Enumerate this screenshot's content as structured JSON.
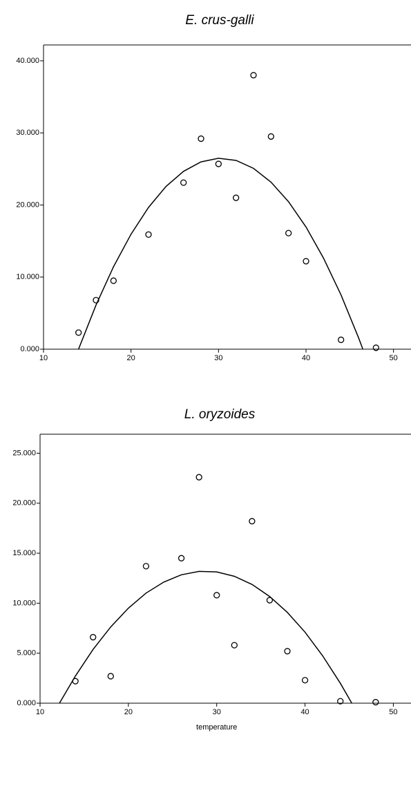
{
  "chart_data": [
    {
      "type": "scatter",
      "title": "E. crus-galli",
      "x": [
        14,
        16,
        18,
        22,
        26,
        28,
        30,
        32,
        34,
        36,
        38,
        40,
        44,
        48
      ],
      "values": [
        2.3,
        6.8,
        9.5,
        15.9,
        23.1,
        29.2,
        25.7,
        21.0,
        38.0,
        29.5,
        16.1,
        12.2,
        1.3,
        0.2
      ],
      "curve": {
        "x": [
          14,
          16,
          18,
          20,
          22,
          24,
          26,
          28,
          30,
          32,
          34,
          36,
          38,
          40,
          42,
          44,
          46,
          46.5
        ],
        "values": [
          0,
          6.12,
          11.43,
          15.95,
          19.66,
          22.57,
          24.67,
          25.98,
          26.48,
          26.18,
          25.08,
          23.17,
          20.46,
          16.95,
          12.64,
          7.52,
          1.6,
          0
        ]
      },
      "xlim": [
        10,
        52
      ],
      "ylim": [
        0,
        42.2
      ],
      "xticks": [
        10,
        20,
        30,
        40,
        50
      ],
      "yticks": [
        {
          "value": 0,
          "label": "0.000"
        },
        {
          "value": 10,
          "label": "10.000"
        },
        {
          "value": 20,
          "label": "20.000"
        },
        {
          "value": 30,
          "label": "30.000"
        },
        {
          "value": 40,
          "label": "40.000"
        }
      ],
      "color": "#000000"
    },
    {
      "type": "scatter",
      "title": "L. oryzoides",
      "x_label": "temperature",
      "x": [
        14,
        16,
        18,
        22,
        26,
        28,
        30,
        32,
        34,
        36,
        38,
        40,
        44,
        48
      ],
      "values": [
        2.2,
        6.6,
        2.7,
        13.7,
        14.5,
        22.6,
        10.8,
        5.8,
        18.2,
        10.3,
        5.2,
        2.3,
        0.2,
        0.1
      ],
      "curve": {
        "x": [
          12.2,
          14,
          16,
          18,
          20,
          22,
          24,
          26,
          28,
          30,
          32,
          34,
          36,
          38,
          40,
          42,
          44,
          45.3
        ],
        "values": [
          0,
          2.71,
          5.37,
          7.63,
          9.51,
          11.01,
          12.11,
          12.84,
          13.18,
          13.13,
          12.69,
          11.87,
          10.67,
          9.08,
          7.1,
          4.74,
          1.99,
          0
        ]
      },
      "xlim": [
        10,
        52
      ],
      "ylim": [
        0,
        26.9
      ],
      "xticks": [
        10,
        20,
        30,
        40,
        50
      ],
      "yticks": [
        {
          "value": 0,
          "label": "0.000"
        },
        {
          "value": 5,
          "label": "5.000"
        },
        {
          "value": 10,
          "label": "10.000"
        },
        {
          "value": 15,
          "label": "15.000"
        },
        {
          "value": 20,
          "label": "20.000"
        },
        {
          "value": 25,
          "label": "25.000"
        }
      ],
      "color": "#000000"
    }
  ]
}
